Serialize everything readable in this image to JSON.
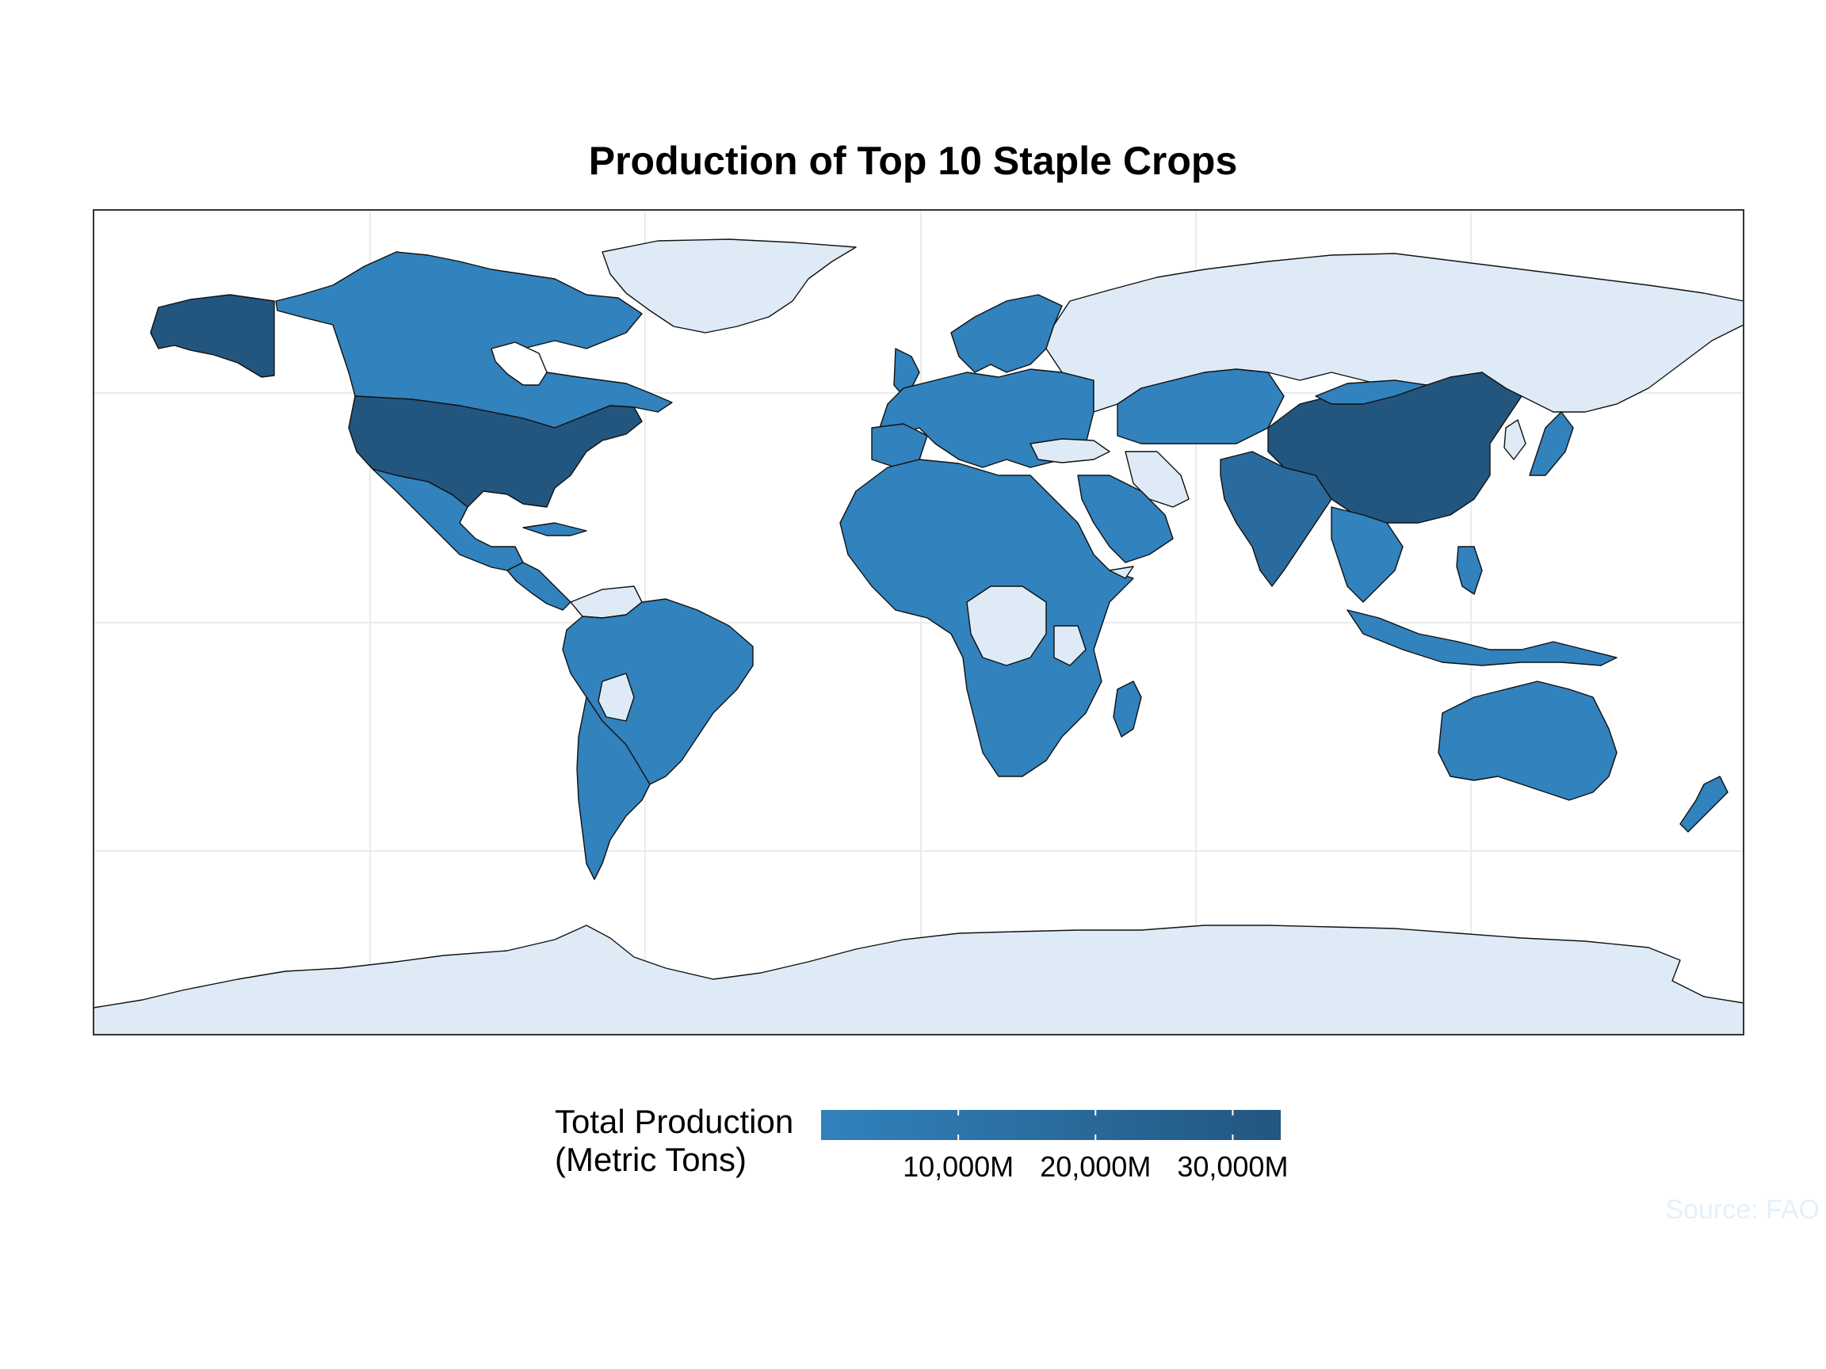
{
  "chart_data": {
    "type": "choropleth",
    "title": "Production of Top 10 Staple Crops",
    "legend": {
      "title_lines": [
        "Total Production",
        "(Metric Tons)"
      ],
      "ticks": [
        {
          "value": 10000,
          "label": "10,000M"
        },
        {
          "value": 20000,
          "label": "20,000M"
        },
        {
          "value": 30000,
          "label": "30,000M"
        }
      ],
      "range": [
        0,
        33500
      ],
      "color_low": "#3182bd",
      "color_high": "#23567f",
      "na_color": "#deebf7",
      "placement": "bottom"
    },
    "regions": [
      {
        "name": "China",
        "level": 1.0
      },
      {
        "name": "United States",
        "level": 0.82
      },
      {
        "name": "Alaska (United States)",
        "level": 0.82
      },
      {
        "name": "India",
        "level": 0.62
      },
      {
        "name": "Canada",
        "level": 0.12
      },
      {
        "name": "Brazil",
        "level": 0.1
      },
      {
        "name": "Russia",
        "level": null
      },
      {
        "name": "Greenland",
        "level": null
      },
      {
        "name": "Antarctica",
        "level": null
      }
    ],
    "caption": "Source: FAO"
  }
}
